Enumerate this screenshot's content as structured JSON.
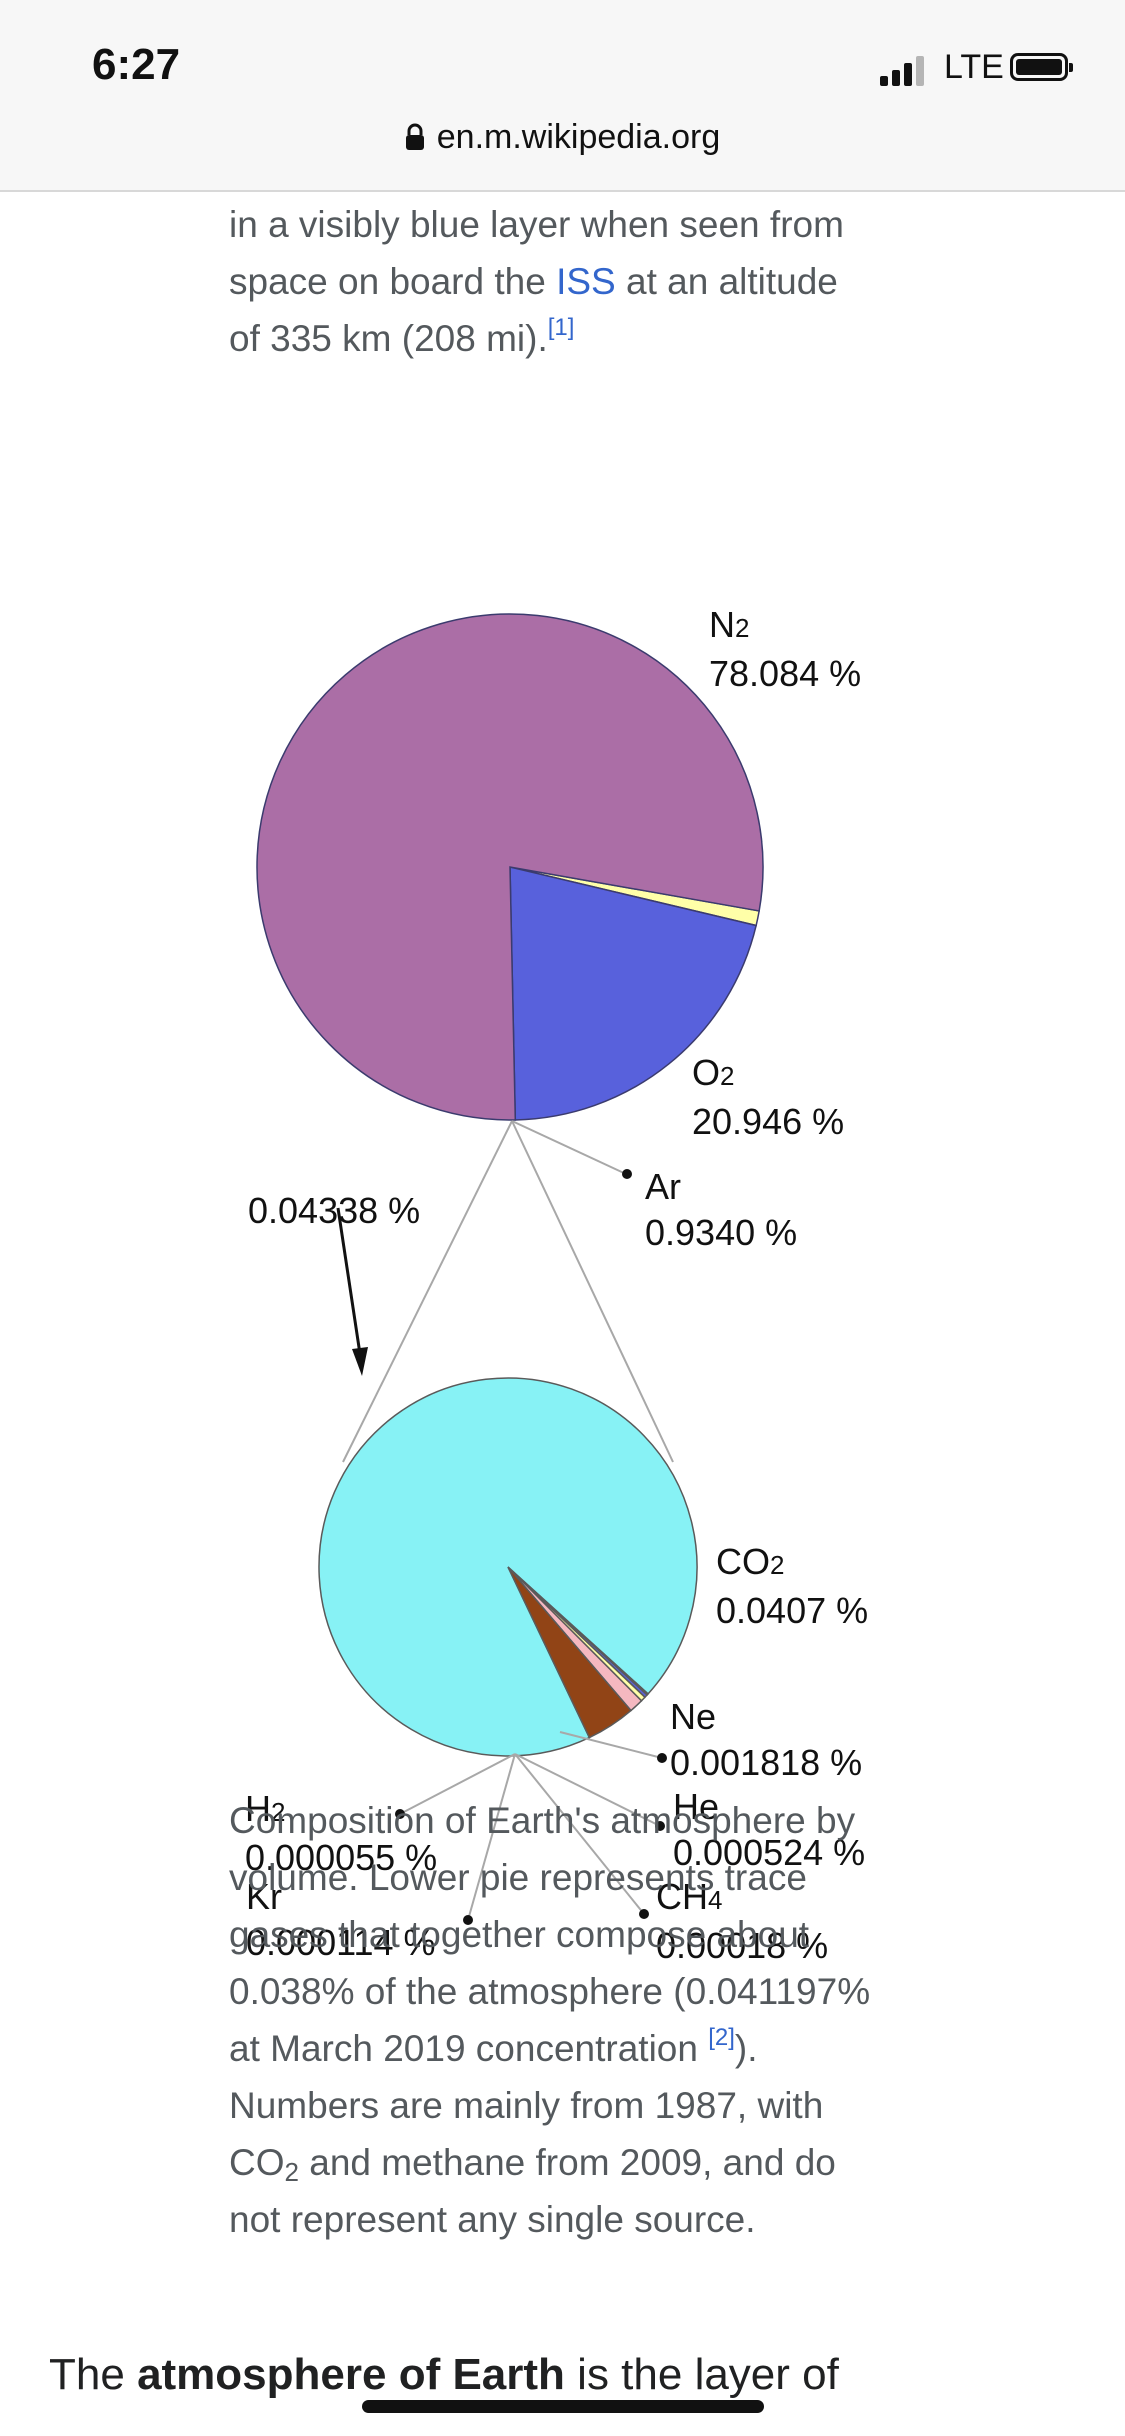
{
  "status_bar": {
    "time": "6:27",
    "network": "LTE"
  },
  "browser": {
    "url": "en.m.wikipedia.org"
  },
  "article": {
    "intro_text": "in a visibly blue layer when seen from space on board the",
    "intro_link": "ISS",
    "intro_text_2": "at an altitude of 335 km (208 mi).",
    "intro_ref": "[1]",
    "caption_part1": "Composition of Earth's atmosphere by volume. Lower pie represents trace gases that together compose about 0.038% of the atmosphere (0.041197% at March 2019 concentration",
    "caption_ref": "[2]",
    "caption_part2": "). Numbers are mainly from 1987, with CO",
    "caption_sub": "2",
    "caption_part3": "and methane from 2009, and do not represent any single source.",
    "lead_prefix": "The",
    "lead_bold": "atmosphere of Earth",
    "lead_suffix": "is the layer of"
  },
  "chart_data": [
    {
      "type": "pie",
      "slices": [
        {
          "name": "N",
          "sub": "2",
          "value": 78.084,
          "label": "78.084 %",
          "color": "#ab6ea6"
        },
        {
          "name": "O",
          "sub": "2",
          "value": 20.946,
          "label": "20.946 %",
          "color": "#5861dc"
        },
        {
          "name": "Ar",
          "sub": "",
          "value": 0.934,
          "label": "0.9340 %",
          "color": "#ffffa8"
        }
      ],
      "annotations": [
        {
          "text": "0.04338 %"
        }
      ]
    },
    {
      "type": "pie",
      "slices": [
        {
          "name": "CO",
          "sub": "2",
          "value": 0.0407,
          "label": "0.0407 %",
          "color": "#87f2f5"
        },
        {
          "name": "Ne",
          "sub": "",
          "value": 0.001818,
          "label": "0.001818 %",
          "color": "#914416"
        },
        {
          "name": "He",
          "sub": "",
          "value": 0.000524,
          "label": "0.000524 %",
          "color": "#f5b8c0"
        },
        {
          "name": "CH",
          "sub": "4",
          "value": 0.00018,
          "label": "0.00018 %",
          "color": "#ffffa8"
        },
        {
          "name": "Kr",
          "sub": "",
          "value": 0.000114,
          "label": "0.000114 %",
          "color": "#5861dc"
        },
        {
          "name": "H",
          "sub": "2",
          "value": 5.5e-05,
          "label": "0.000055 %",
          "color": "#2f2f8f"
        }
      ]
    }
  ]
}
